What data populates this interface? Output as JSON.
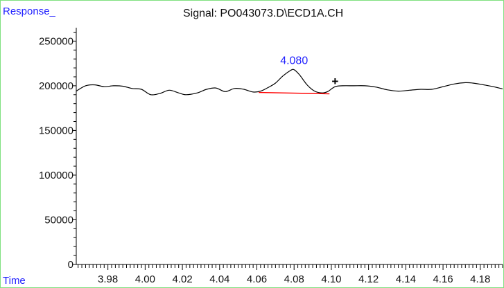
{
  "chart_data": {
    "type": "line",
    "title": "Signal: PO043073.D\\ECD1A.CH",
    "ylabel": "Response_",
    "xlabel": "Time",
    "xlim": [
      3.963,
      4.192
    ],
    "ylim": [
      0,
      265000
    ],
    "x_ticks": [
      "3.98",
      "4.00",
      "4.02",
      "4.04",
      "4.06",
      "4.08",
      "4.10",
      "4.12",
      "4.14",
      "4.16",
      "4.18"
    ],
    "y_ticks": [
      "0",
      "50000",
      "100000",
      "150000",
      "200000",
      "250000"
    ],
    "grid": false,
    "series": [
      {
        "x": [
          3.963,
          3.968,
          3.973,
          3.978,
          3.983,
          3.988,
          3.993,
          3.998,
          4.003,
          4.008,
          4.013,
          4.018,
          4.022,
          4.028,
          4.033,
          4.038,
          4.043,
          4.048,
          4.053,
          4.058,
          4.062,
          4.066,
          4.07,
          4.074,
          4.078,
          4.08,
          4.083,
          4.087,
          4.091,
          4.095,
          4.098,
          4.102,
          4.106,
          4.112,
          4.118,
          4.124,
          4.13,
          4.136,
          4.142,
          4.148,
          4.154,
          4.16,
          4.166,
          4.172,
          4.176,
          4.182,
          4.187,
          4.192
        ],
        "y": [
          194000,
          200000,
          201000,
          199000,
          200000,
          199500,
          197000,
          196000,
          190000,
          191500,
          195000,
          192000,
          190000,
          192000,
          196000,
          197500,
          193500,
          197000,
          196000,
          193000,
          194000,
          198000,
          203000,
          211000,
          217000,
          218000,
          212000,
          201000,
          194000,
          192000,
          193500,
          199000,
          200000,
          200000,
          200000,
          198500,
          195500,
          194000,
          195000,
          196000,
          196000,
          199000,
          202000,
          203500,
          203000,
          201000,
          199000,
          196500
        ]
      }
    ],
    "baseline": {
      "x": [
        4.061,
        4.099
      ],
      "y": [
        192500,
        191000
      ],
      "color": "#ff0000"
    },
    "annotations": [
      {
        "text": "4.080",
        "x": 4.08,
        "y": 218000,
        "color": "#1f1fff"
      },
      {
        "text": "+",
        "x": 4.102,
        "y": 199000,
        "color": "#000000"
      }
    ],
    "colors": {
      "line": "#000000",
      "axis": "#000000",
      "label": "#1f1fff",
      "baseline": "#ff0000",
      "frame": "#7ee07e"
    }
  }
}
